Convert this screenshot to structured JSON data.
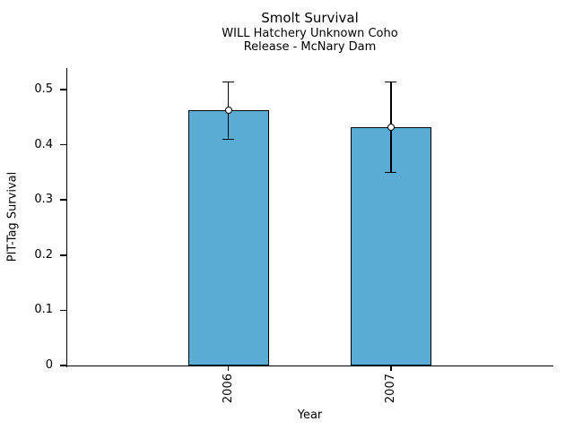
{
  "chart_data": {
    "type": "bar",
    "title": "Smolt Survival",
    "subtitle_line1": "WILL Hatchery Unknown Coho",
    "subtitle_line2": "Release - McNary Dam",
    "xlabel": "Year",
    "ylabel": "PIT-Tag Survival",
    "categories": [
      "2006",
      "2007"
    ],
    "series": [
      {
        "name": "PIT-Tag Survival",
        "values": [
          0.462,
          0.432
        ],
        "error_low": [
          0.41,
          0.35
        ],
        "error_high": [
          0.514,
          0.514
        ]
      }
    ],
    "ylim": [
      0,
      0.539
    ],
    "yticks": [
      0,
      0.1,
      0.2,
      0.3,
      0.4,
      0.5
    ],
    "ytick_labels": [
      "0",
      "0.1",
      "0.2",
      "0.3",
      "0.4",
      "0.5"
    ],
    "grid": false,
    "legend_position": "none",
    "marker": "open-circle",
    "colors": {
      "bar_fill": "#5AACD5",
      "bar_edge": "#000000",
      "error": "#000000",
      "marker_fill": "#FFFFFF",
      "marker_edge": "#000000",
      "text": "#000000",
      "background": "#FFFFFF"
    }
  }
}
